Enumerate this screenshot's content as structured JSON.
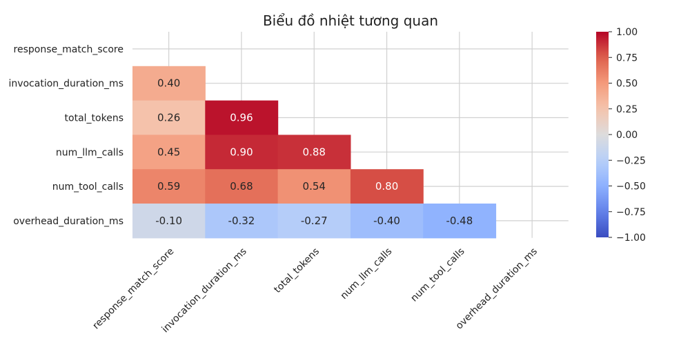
{
  "chart_data": {
    "type": "heatmap",
    "title": "Biểu đồ nhiệt tương quan",
    "variables": [
      "response_match_score",
      "invocation_duration_ms",
      "total_tokens",
      "num_llm_calls",
      "num_tool_calls",
      "overhead_duration_ms"
    ],
    "matrix": [
      [
        null,
        null,
        null,
        null,
        null,
        null
      ],
      [
        0.4,
        null,
        null,
        null,
        null,
        null
      ],
      [
        0.26,
        0.96,
        null,
        null,
        null,
        null
      ],
      [
        0.45,
        0.9,
        0.88,
        null,
        null,
        null
      ],
      [
        0.59,
        0.68,
        0.54,
        0.8,
        null,
        null
      ],
      [
        -0.1,
        -0.32,
        -0.27,
        -0.4,
        -0.48,
        null
      ]
    ],
    "mask": "upper-triangle-including-diagonal",
    "colormap": "coolwarm",
    "vmin": -1.0,
    "vmax": 1.0,
    "colorbar_ticks": [
      "1.00",
      "0.75",
      "0.50",
      "0.25",
      "0.00",
      "−0.25",
      "−0.50",
      "−0.75",
      "−1.00"
    ],
    "colorbar_tick_values": [
      1.0,
      0.75,
      0.5,
      0.25,
      0.0,
      -0.25,
      -0.5,
      -0.75,
      -1.0
    ],
    "annotation_format": "2 decimals",
    "grid": true
  }
}
